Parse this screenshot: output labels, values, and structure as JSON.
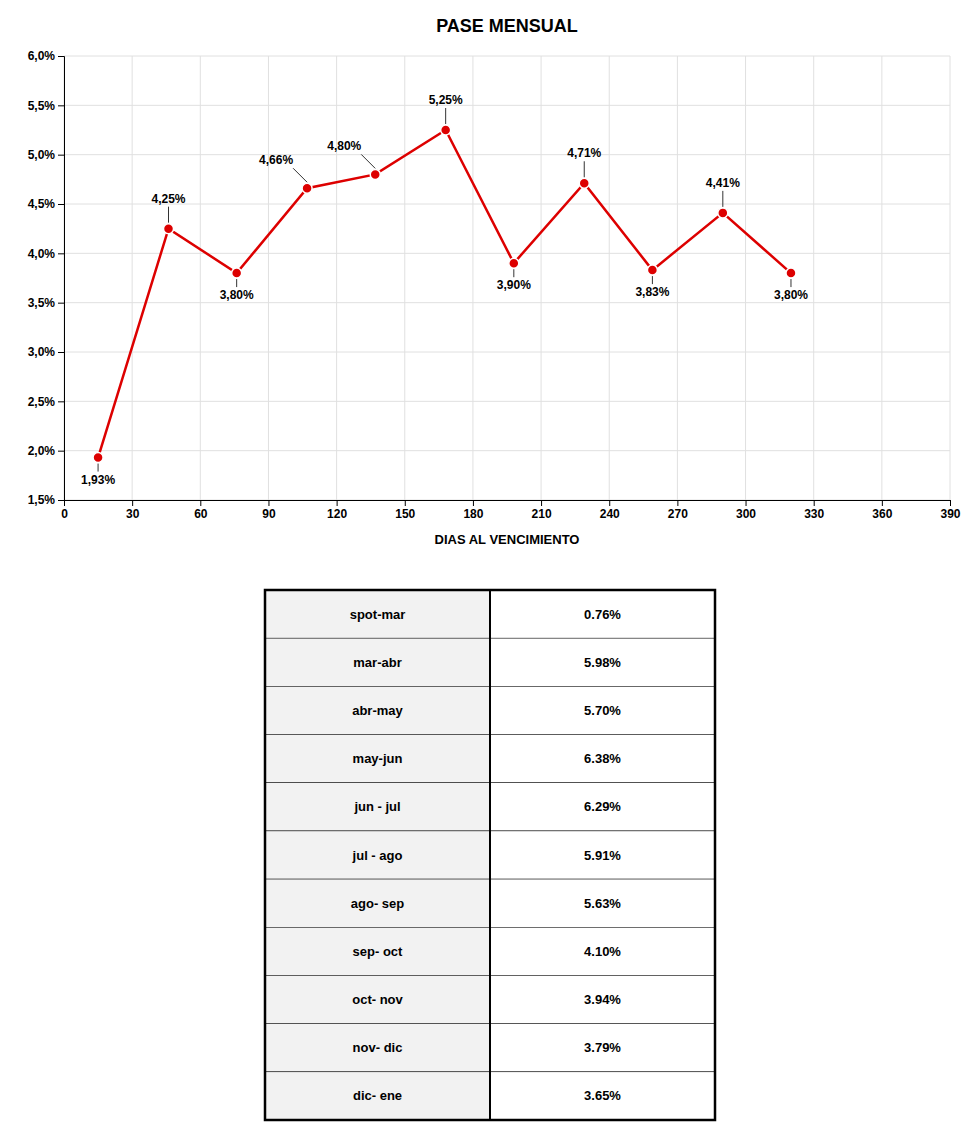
{
  "chart_data": [
    {
      "type": "line",
      "title": "PASE MENSUAL",
      "xlabel": "DIAS AL VENCIMIENTO",
      "x": [
        15,
        46,
        76,
        107,
        137,
        168,
        198,
        229,
        259,
        290,
        320
      ],
      "values": [
        1.93,
        4.25,
        3.8,
        4.66,
        4.8,
        5.25,
        3.9,
        4.71,
        3.83,
        4.41,
        3.8
      ],
      "value_labels": [
        "1,93%",
        "4,25%",
        "3,80%",
        "4,66%",
        "4,80%",
        "5,25%",
        "3,90%",
        "4,71%",
        "3,83%",
        "4,41%",
        "3,80%"
      ],
      "data_labels": true,
      "color": "#DD0000",
      "marker": "circle",
      "xlim": [
        0,
        390
      ],
      "ylim": [
        1.5,
        6.0
      ],
      "xticks": [
        0,
        30,
        60,
        90,
        120,
        150,
        180,
        210,
        240,
        270,
        300,
        330,
        360,
        390
      ],
      "yticks": [
        {
          "value": 1.5,
          "label": "1,5%"
        },
        {
          "value": 2.0,
          "label": "2,0%"
        },
        {
          "value": 2.5,
          "label": "2,5%"
        },
        {
          "value": 3.0,
          "label": "3,0%"
        },
        {
          "value": 3.5,
          "label": "3,5%"
        },
        {
          "value": 4.0,
          "label": "4,0%"
        },
        {
          "value": 4.5,
          "label": "4,5%"
        },
        {
          "value": 5.0,
          "label": "5,0%"
        },
        {
          "value": 5.5,
          "label": "5,5%"
        },
        {
          "value": 6.0,
          "label": "6,0%"
        }
      ],
      "grid": true
    },
    {
      "type": "table",
      "categories": [
        "spot-mar",
        "mar-abr",
        "abr-may",
        "may-jun",
        "jun - jul",
        "jul - ago",
        "ago- sep",
        "sep- oct",
        "oct- nov",
        "nov- dic",
        "dic- ene"
      ],
      "values": [
        0.76,
        5.98,
        5.7,
        6.38,
        6.29,
        5.91,
        5.63,
        4.1,
        3.94,
        3.79,
        3.65
      ],
      "value_labels": [
        "0.76%",
        "5.98%",
        "5.70%",
        "6.38%",
        "6.29%",
        "5.91%",
        "5.63%",
        "4.10%",
        "3.94%",
        "3.79%",
        "3.65%"
      ]
    }
  ]
}
